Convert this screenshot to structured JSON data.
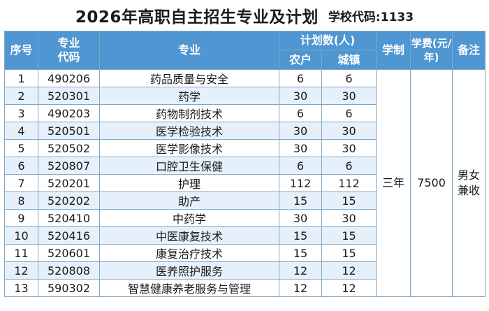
{
  "header": {
    "title": "2026年高职自主招生专业及计划",
    "school_code": "学校代码:1133"
  },
  "table": {
    "columns": {
      "index": "序号",
      "code": "专业代码",
      "major": "专业",
      "plan_group": "计划数(人)",
      "rural": "农户",
      "urban": "城镇",
      "duration": "学制",
      "tuition": "学费(元/年)",
      "remarks": "备注"
    },
    "rows": [
      {
        "no": "1",
        "code": "490206",
        "major": "药品质量与安全",
        "rural": "6",
        "urban": "6"
      },
      {
        "no": "2",
        "code": "520301",
        "major": "药学",
        "rural": "30",
        "urban": "30"
      },
      {
        "no": "3",
        "code": "490203",
        "major": "药物制剂技术",
        "rural": "6",
        "urban": "6"
      },
      {
        "no": "4",
        "code": "520501",
        "major": "医学检验技术",
        "rural": "30",
        "urban": "30"
      },
      {
        "no": "5",
        "code": "520502",
        "major": "医学影像技术",
        "rural": "30",
        "urban": "30"
      },
      {
        "no": "6",
        "code": "520807",
        "major": "口腔卫生保健",
        "rural": "6",
        "urban": "6"
      },
      {
        "no": "7",
        "code": "520201",
        "major": "护理",
        "rural": "112",
        "urban": "112"
      },
      {
        "no": "8",
        "code": "520202",
        "major": "助产",
        "rural": "15",
        "urban": "15"
      },
      {
        "no": "9",
        "code": "520410",
        "major": "中药学",
        "rural": "30",
        "urban": "30"
      },
      {
        "no": "10",
        "code": "520416",
        "major": "中医康复技术",
        "rural": "15",
        "urban": "15"
      },
      {
        "no": "11",
        "code": "520601",
        "major": "康复治疗技术",
        "rural": "15",
        "urban": "15"
      },
      {
        "no": "12",
        "code": "520808",
        "major": "医养照护服务",
        "rural": "12",
        "urban": "12"
      },
      {
        "no": "13",
        "code": "590302",
        "major": "智慧健康养老服务与管理",
        "rural": "12",
        "urban": "12"
      }
    ],
    "shared": {
      "duration": "三年",
      "tuition": "7500",
      "remarks": "男女兼收"
    }
  },
  "colors": {
    "header_bg": "#4f96d2",
    "stripe_bg": "#e6f0fa",
    "border": "#7fa7c6"
  }
}
